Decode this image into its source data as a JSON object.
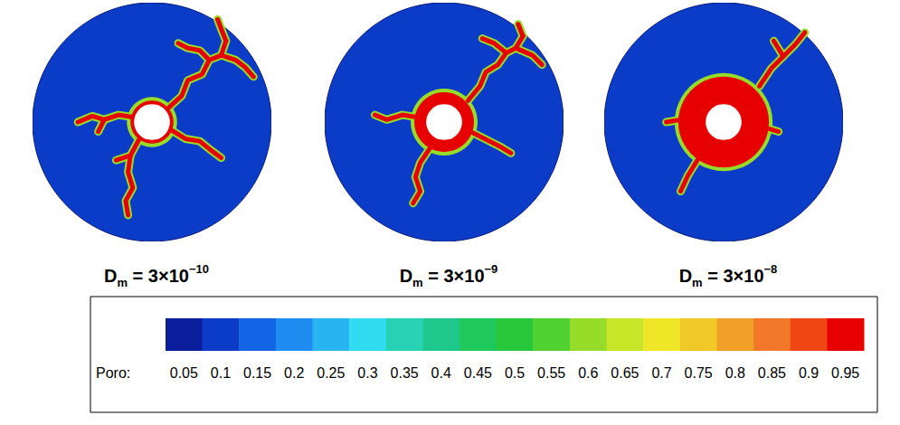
{
  "chart_data": [
    {
      "type": "porosity_map",
      "title": {
        "main": "D",
        "subscript": "m",
        "text": " = 3×10",
        "superscript": "−10"
      },
      "xlim": [
        -1,
        1
      ],
      "ylim": [
        -1,
        1
      ],
      "tick_labels": false,
      "background_porosity": 0.1,
      "well_radius": 0.15,
      "dissolved_radius": 0.18,
      "dissolved_porosity": 0.95,
      "wormhole_porosity": 0.95,
      "fringe_porosity": 0.6,
      "wormholes": [
        [
          [
            0.14,
            0.12
          ],
          [
            0.25,
            0.22
          ],
          [
            0.3,
            0.35
          ],
          [
            0.42,
            0.4
          ],
          [
            0.48,
            0.52
          ],
          [
            0.58,
            0.56
          ],
          [
            0.62,
            0.68
          ]
        ],
        [
          [
            0.48,
            0.52
          ],
          [
            0.4,
            0.6
          ],
          [
            0.3,
            0.62
          ],
          [
            0.22,
            0.66
          ]
        ],
        [
          [
            0.62,
            0.68
          ],
          [
            0.58,
            0.78
          ],
          [
            0.55,
            0.86
          ]
        ],
        [
          [
            0.58,
            0.56
          ],
          [
            0.7,
            0.52
          ],
          [
            0.78,
            0.46
          ],
          [
            0.85,
            0.38
          ]
        ],
        [
          [
            -0.15,
            0.04
          ],
          [
            -0.28,
            0.06
          ],
          [
            -0.4,
            0.02
          ],
          [
            -0.5,
            0.05
          ],
          [
            -0.62,
            0.0
          ]
        ],
        [
          [
            -0.4,
            0.02
          ],
          [
            -0.45,
            -0.08
          ]
        ],
        [
          [
            -0.1,
            -0.13
          ],
          [
            -0.18,
            -0.28
          ],
          [
            -0.2,
            -0.42
          ],
          [
            -0.16,
            -0.55
          ],
          [
            -0.22,
            -0.66
          ],
          [
            -0.2,
            -0.78
          ]
        ],
        [
          [
            -0.18,
            -0.28
          ],
          [
            -0.3,
            -0.32
          ]
        ],
        [
          [
            0.15,
            -0.06
          ],
          [
            0.28,
            -0.14
          ],
          [
            0.4,
            -0.16
          ],
          [
            0.5,
            -0.24
          ],
          [
            0.58,
            -0.3
          ]
        ]
      ]
    },
    {
      "type": "porosity_map",
      "title": {
        "main": "D",
        "subscript": "m",
        "text": " = 3×10",
        "superscript": "−9"
      },
      "xlim": [
        -1,
        1
      ],
      "ylim": [
        -1,
        1
      ],
      "tick_labels": false,
      "background_porosity": 0.1,
      "well_radius": 0.15,
      "dissolved_radius": 0.25,
      "dissolved_porosity": 0.95,
      "wormhole_porosity": 0.95,
      "fringe_porosity": 0.6,
      "wormholes": [
        [
          [
            0.2,
            0.18
          ],
          [
            0.3,
            0.3
          ],
          [
            0.35,
            0.42
          ],
          [
            0.45,
            0.48
          ],
          [
            0.52,
            0.58
          ],
          [
            0.6,
            0.62
          ],
          [
            0.66,
            0.72
          ]
        ],
        [
          [
            0.52,
            0.58
          ],
          [
            0.42,
            0.66
          ],
          [
            0.32,
            0.7
          ]
        ],
        [
          [
            0.66,
            0.72
          ],
          [
            0.62,
            0.82
          ]
        ],
        [
          [
            0.6,
            0.62
          ],
          [
            0.74,
            0.56
          ],
          [
            0.82,
            0.48
          ]
        ],
        [
          [
            -0.22,
            0.04
          ],
          [
            -0.35,
            0.06
          ],
          [
            -0.48,
            0.02
          ],
          [
            -0.58,
            0.06
          ]
        ],
        [
          [
            -0.12,
            -0.22
          ],
          [
            -0.2,
            -0.34
          ],
          [
            -0.24,
            -0.46
          ],
          [
            -0.2,
            -0.58
          ],
          [
            -0.26,
            -0.68
          ]
        ],
        [
          [
            0.22,
            -0.08
          ],
          [
            0.34,
            -0.14
          ],
          [
            0.46,
            -0.2
          ],
          [
            0.56,
            -0.26
          ]
        ]
      ]
    },
    {
      "type": "porosity_map",
      "title": {
        "main": "D",
        "subscript": "m",
        "text": " = 3×10",
        "superscript": "−8"
      },
      "xlim": [
        -1,
        1
      ],
      "ylim": [
        -1,
        1
      ],
      "tick_labels": false,
      "background_porosity": 0.1,
      "well_radius": 0.15,
      "dissolved_radius": 0.38,
      "dissolved_porosity": 0.95,
      "wormhole_porosity": 0.95,
      "fringe_porosity": 0.6,
      "wormholes": [
        [
          [
            0.3,
            0.3
          ],
          [
            0.4,
            0.45
          ],
          [
            0.5,
            0.55
          ],
          [
            0.6,
            0.65
          ],
          [
            0.68,
            0.75
          ]
        ],
        [
          [
            0.5,
            0.55
          ],
          [
            0.42,
            0.68
          ]
        ],
        [
          [
            -0.22,
            -0.32
          ],
          [
            -0.3,
            -0.45
          ],
          [
            -0.36,
            -0.58
          ]
        ],
        [
          [
            -0.36,
            0.02
          ],
          [
            -0.48,
            0.0
          ]
        ],
        [
          [
            0.36,
            -0.05
          ],
          [
            0.46,
            -0.08
          ]
        ]
      ]
    }
  ],
  "colorbar": {
    "label": "Poro:",
    "ticks": [
      0.05,
      0.1,
      0.15,
      0.2,
      0.25,
      0.3,
      0.35,
      0.4,
      0.45,
      0.5,
      0.55,
      0.6,
      0.65,
      0.7,
      0.75,
      0.8,
      0.85,
      0.9,
      0.95
    ],
    "colors": [
      "#0a1e9c",
      "#0a3cc8",
      "#1464e6",
      "#1e8cf0",
      "#28b4f0",
      "#32dcf0",
      "#28d2b4",
      "#1ec88c",
      "#1ec85a",
      "#28c83c",
      "#50d232",
      "#96dc28",
      "#c8e628",
      "#f0e628",
      "#f0c828",
      "#f0a028",
      "#f07828",
      "#f04614",
      "#e60000"
    ]
  }
}
